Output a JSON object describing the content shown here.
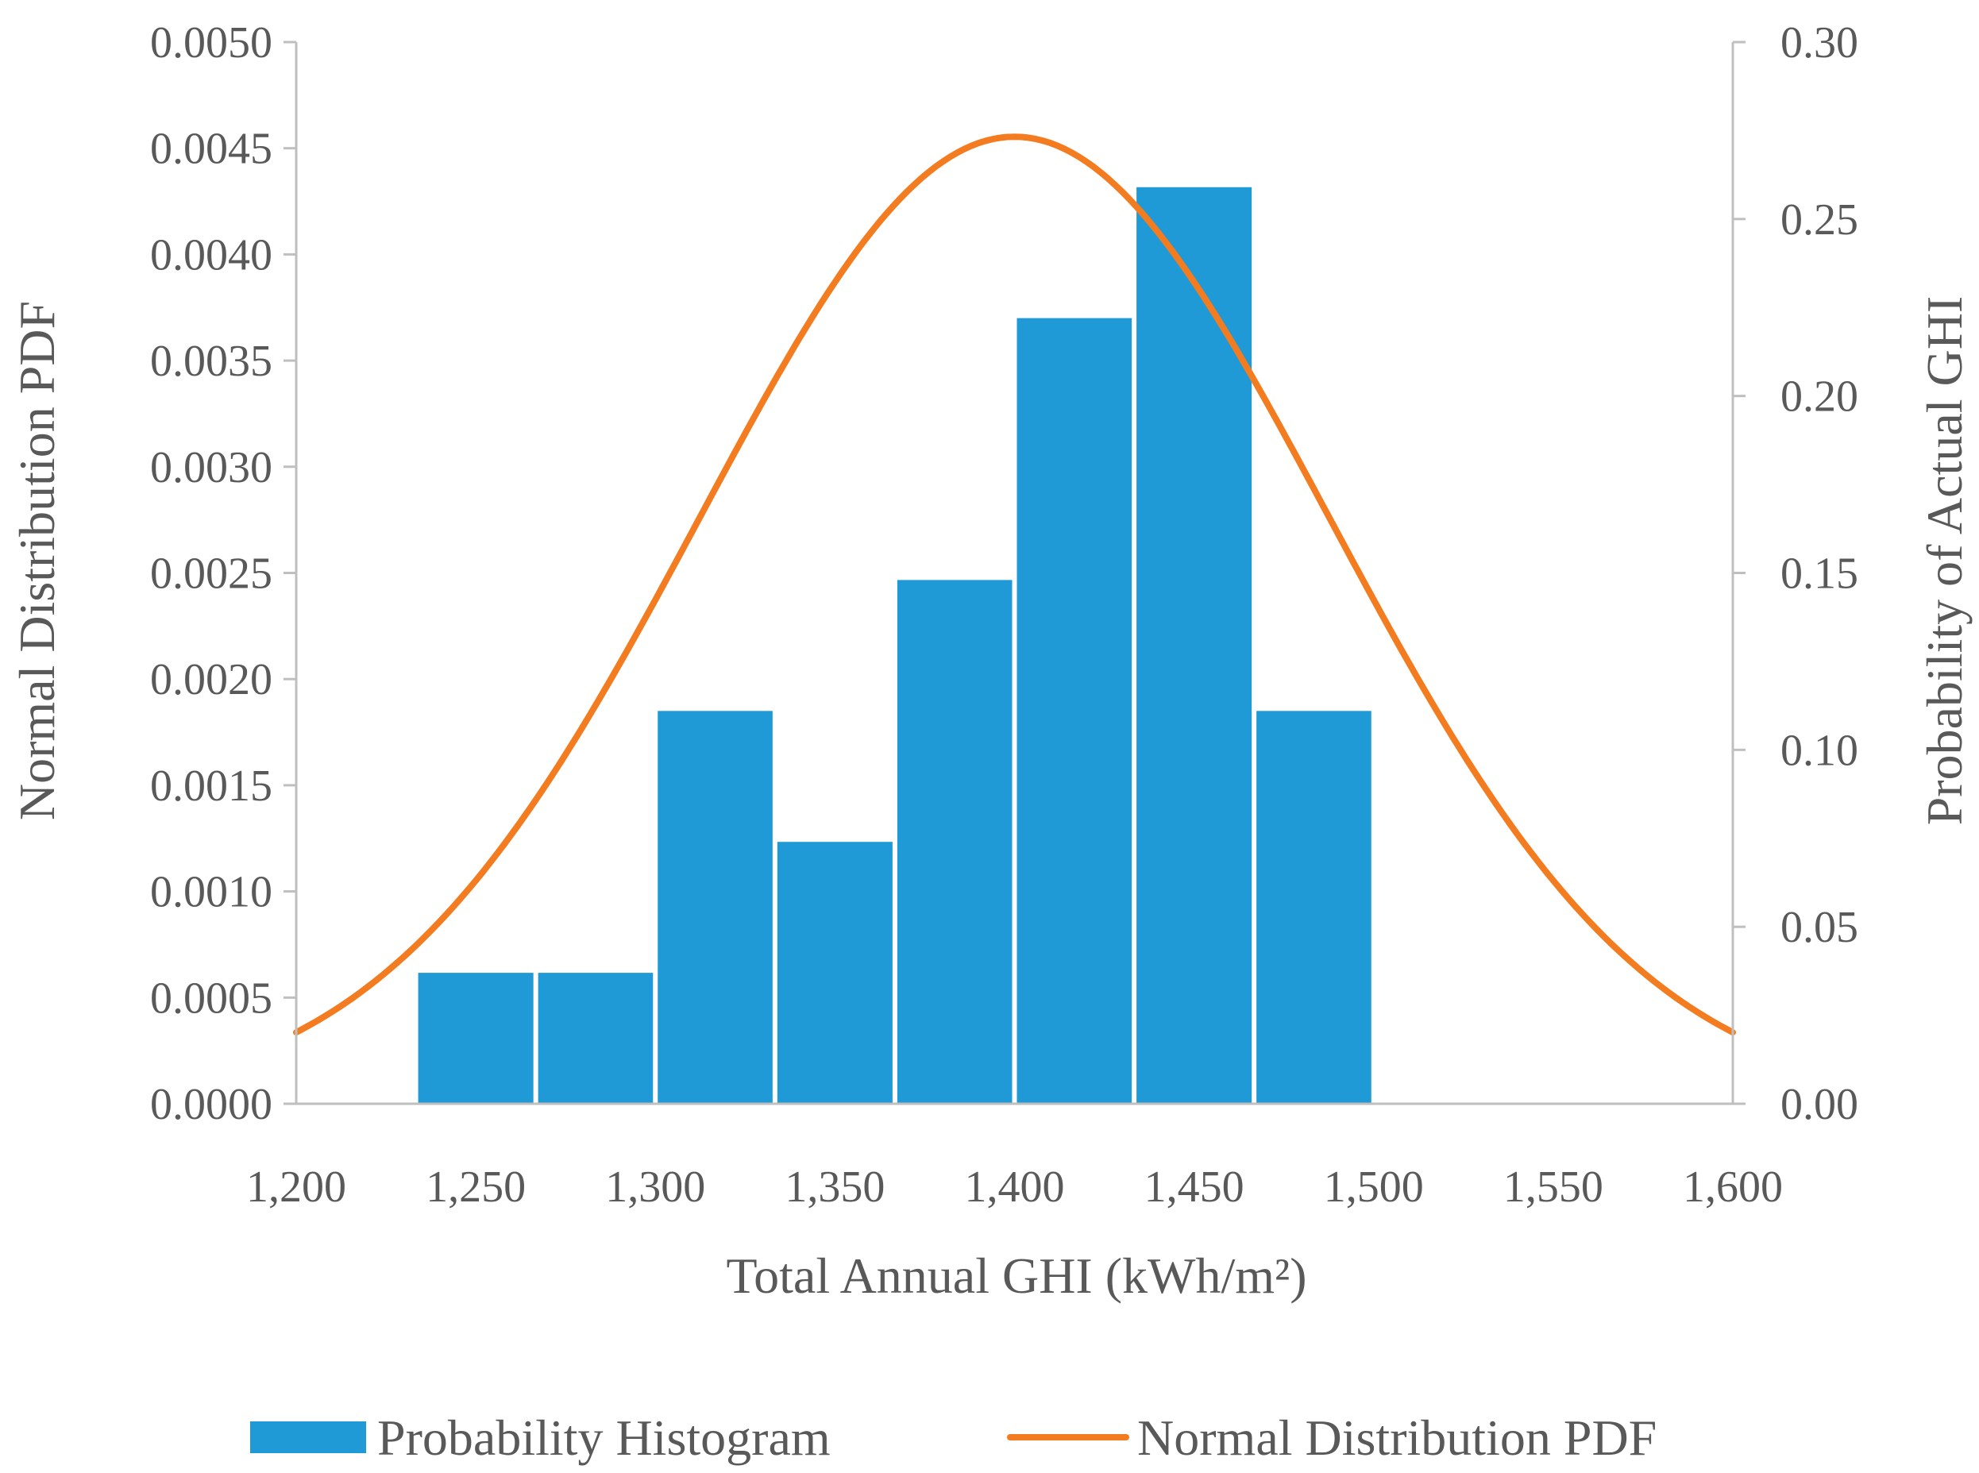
{
  "chart_data": {
    "type": "bar",
    "x_ticks": [
      "1,200",
      "1,250",
      "1,300",
      "1,350",
      "1,400",
      "1,450",
      "1,500",
      "1,550",
      "1,600"
    ],
    "xlim": [
      1200,
      1600
    ],
    "xlabel": "Total Annual GHI (kWh/m²)",
    "y_left": {
      "label": "Normal Distribution PDF",
      "ticks": [
        "0.0000",
        "0.0005",
        "0.0010",
        "0.0015",
        "0.0020",
        "0.0025",
        "0.0030",
        "0.0035",
        "0.0040",
        "0.0045",
        "0.0050"
      ],
      "lim": [
        0,
        0.005
      ]
    },
    "y_right": {
      "label": "Probability of Actual GHI",
      "ticks": [
        "0.00",
        "0.05",
        "0.10",
        "0.15",
        "0.20",
        "0.25",
        "0.30"
      ],
      "lim": [
        0,
        0.3
      ]
    },
    "series": [
      {
        "name": "Probability Histogram",
        "kind": "bar",
        "axis": "right",
        "color": "#1F9AD6",
        "bin_width": 33.3,
        "bins": [
          {
            "start": 1233.3,
            "end": 1266.7,
            "value": 0.037
          },
          {
            "start": 1266.7,
            "end": 1300.0,
            "value": 0.037
          },
          {
            "start": 1300.0,
            "end": 1333.3,
            "value": 0.111
          },
          {
            "start": 1333.3,
            "end": 1366.7,
            "value": 0.074
          },
          {
            "start": 1366.7,
            "end": 1400.0,
            "value": 0.148
          },
          {
            "start": 1400.0,
            "end": 1433.3,
            "value": 0.222
          },
          {
            "start": 1433.3,
            "end": 1466.7,
            "value": 0.259
          },
          {
            "start": 1466.7,
            "end": 1500.0,
            "value": 0.111
          }
        ]
      },
      {
        "name": "Normal Distribution PDF",
        "kind": "line",
        "axis": "left",
        "color": "#F47C20",
        "mean": 1400,
        "std": 87.6
      }
    ],
    "legend_position": "bottom"
  }
}
